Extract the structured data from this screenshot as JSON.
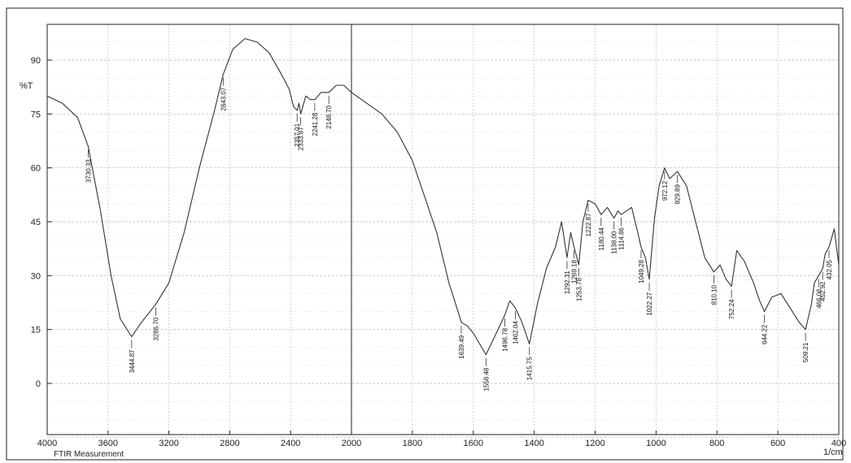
{
  "chart_data": {
    "type": "line",
    "ylabel": "%T",
    "xunit": "1/cm",
    "footer": "FTIR Measurement",
    "xlim": [
      4000,
      400
    ],
    "ylim": [
      -15,
      100
    ],
    "x_ticks": [
      "4000",
      "3600",
      "3200",
      "2800",
      "2400",
      "2000",
      "1800",
      "1600",
      "1400",
      "1200",
      "1000",
      "800",
      "600",
      "400"
    ],
    "y_ticks": [
      "0",
      "15",
      "30",
      "45",
      "60",
      "75",
      "90"
    ],
    "grid": true,
    "series": [
      {
        "points": [
          [
            4000,
            80
          ],
          [
            3900,
            78
          ],
          [
            3800,
            74
          ],
          [
            3730.33,
            66
          ],
          [
            3650,
            48
          ],
          [
            3580,
            30
          ],
          [
            3520,
            18
          ],
          [
            3444.87,
            13
          ],
          [
            3380,
            17
          ],
          [
            3286.7,
            22
          ],
          [
            3200,
            28
          ],
          [
            3100,
            42
          ],
          [
            3000,
            60
          ],
          [
            2900,
            76
          ],
          [
            2843.07,
            86
          ],
          [
            2780,
            93
          ],
          [
            2700,
            96
          ],
          [
            2620,
            95
          ],
          [
            2540,
            92
          ],
          [
            2460,
            86
          ],
          [
            2410,
            82
          ],
          [
            2380,
            77
          ],
          [
            2357.01,
            76
          ],
          [
            2345,
            78
          ],
          [
            2333.87,
            75
          ],
          [
            2300,
            80
          ],
          [
            2270,
            79
          ],
          [
            2241.28,
            79
          ],
          [
            2200,
            81
          ],
          [
            2148.7,
            81
          ],
          [
            2100,
            83
          ],
          [
            2050,
            83
          ],
          [
            2000,
            81
          ],
          [
            1900,
            75
          ],
          [
            1850,
            70
          ],
          [
            1800,
            62
          ],
          [
            1760,
            52
          ],
          [
            1720,
            42
          ],
          [
            1680,
            28
          ],
          [
            1650,
            20
          ],
          [
            1639.49,
            17
          ],
          [
            1620,
            16
          ],
          [
            1600,
            14
          ],
          [
            1558.48,
            8
          ],
          [
            1530,
            13
          ],
          [
            1496.78,
            19
          ],
          [
            1480,
            23
          ],
          [
            1462.04,
            21
          ],
          [
            1440,
            17
          ],
          [
            1415.75,
            11
          ],
          [
            1390,
            22
          ],
          [
            1360,
            32
          ],
          [
            1330,
            38
          ],
          [
            1310,
            45
          ],
          [
            1292.31,
            35
          ],
          [
            1280,
            42
          ],
          [
            1269.18,
            38
          ],
          [
            1253.78,
            33
          ],
          [
            1240,
            45
          ],
          [
            1222.87,
            51
          ],
          [
            1200,
            50
          ],
          [
            1180.44,
            47
          ],
          [
            1160,
            49
          ],
          [
            1138.0,
            46
          ],
          [
            1125,
            48
          ],
          [
            1114.86,
            47
          ],
          [
            1080,
            49
          ],
          [
            1060,
            42
          ],
          [
            1049.28,
            38
          ],
          [
            1035,
            35
          ],
          [
            1022.27,
            29
          ],
          [
            1005,
            46
          ],
          [
            990,
            55
          ],
          [
            972.12,
            60
          ],
          [
            955,
            57
          ],
          [
            929.89,
            59
          ],
          [
            900,
            55
          ],
          [
            870,
            45
          ],
          [
            840,
            35
          ],
          [
            810.1,
            31
          ],
          [
            790,
            33
          ],
          [
            770,
            29
          ],
          [
            752.24,
            27
          ],
          [
            735,
            37
          ],
          [
            710,
            34
          ],
          [
            680,
            28
          ],
          [
            660,
            23
          ],
          [
            644.22,
            20
          ],
          [
            620,
            24
          ],
          [
            590,
            25
          ],
          [
            560,
            21
          ],
          [
            530,
            17
          ],
          [
            509.21,
            15
          ],
          [
            490,
            22
          ],
          [
            480,
            28
          ],
          [
            466.06,
            30
          ],
          [
            452.92,
            32
          ],
          [
            445,
            36
          ],
          [
            432.05,
            38
          ],
          [
            415,
            43
          ],
          [
            400,
            33
          ]
        ]
      }
    ],
    "peak_labels": [
      {
        "x": 3730.33,
        "text": "3730.33"
      },
      {
        "x": 3444.87,
        "text": "3444.87"
      },
      {
        "x": 3286.7,
        "text": "3286.70"
      },
      {
        "x": 2843.07,
        "text": "2843.07"
      },
      {
        "x": 2357.01,
        "text": "2357.01"
      },
      {
        "x": 2333.87,
        "text": "2333.87"
      },
      {
        "x": 2241.28,
        "text": "2241.28"
      },
      {
        "x": 2148.7,
        "text": "2148.70"
      },
      {
        "x": 1639.49,
        "text": "1639.49"
      },
      {
        "x": 1558.48,
        "text": "1558.48"
      },
      {
        "x": 1496.78,
        "text": "1496.78"
      },
      {
        "x": 1462.04,
        "text": "1462.04"
      },
      {
        "x": 1415.75,
        "text": "1415.75"
      },
      {
        "x": 1292.31,
        "text": "1292.31"
      },
      {
        "x": 1269.18,
        "text": "1269.18"
      },
      {
        "x": 1253.78,
        "text": "1253.78"
      },
      {
        "x": 1222.87,
        "text": "1222.87"
      },
      {
        "x": 1180.44,
        "text": "1180.44"
      },
      {
        "x": 1138.0,
        "text": "1138.00"
      },
      {
        "x": 1114.86,
        "text": "1114.86"
      },
      {
        "x": 1049.28,
        "text": "1049.28"
      },
      {
        "x": 1022.27,
        "text": "1022.27"
      },
      {
        "x": 972.12,
        "text": "972.12"
      },
      {
        "x": 929.89,
        "text": "929.89"
      },
      {
        "x": 810.1,
        "text": "810.10"
      },
      {
        "x": 752.24,
        "text": "752.24"
      },
      {
        "x": 644.22,
        "text": "644.22"
      },
      {
        "x": 509.21,
        "text": "509.21"
      },
      {
        "x": 466.06,
        "text": "466.06"
      },
      {
        "x": 452.92,
        "text": "452.92"
      },
      {
        "x": 432.05,
        "text": "432.05"
      }
    ],
    "colors": {
      "line": "#333333",
      "grid": "#b8b8b8",
      "axis": "#222222"
    }
  }
}
